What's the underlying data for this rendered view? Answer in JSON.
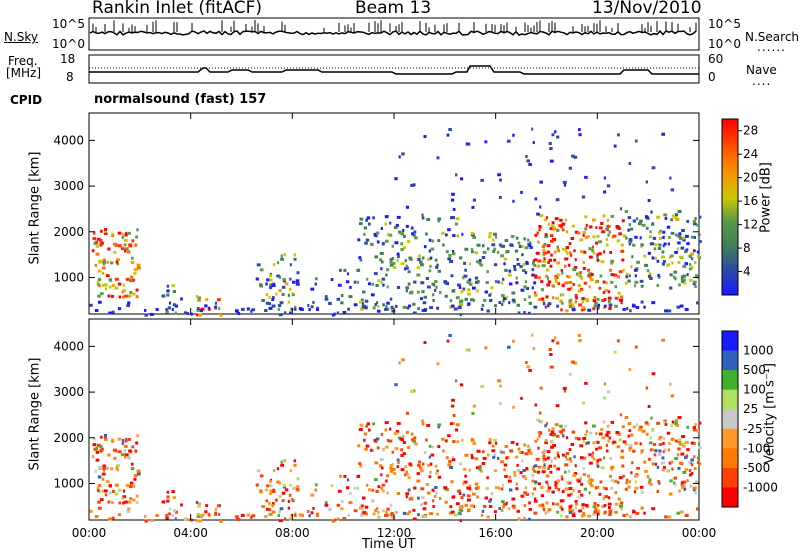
{
  "header": {
    "station": "Rankin Inlet (fitACF)",
    "beam": "Beam 13",
    "date": "13/Nov/2010"
  },
  "strip1": {
    "left_label": "N.Sky",
    "left_ticks": [
      "10^5",
      "10^0"
    ],
    "right_ticks": [
      "10^5",
      "10^0"
    ],
    "right_label": "N.Search",
    "right_legend_line": "......"
  },
  "strip2": {
    "left_label_1": "Freq.",
    "left_label_2": "[MHz]",
    "left_ticks": [
      "18",
      "8"
    ],
    "right_ticks": [
      "60",
      "0"
    ],
    "right_label": "Nave",
    "right_legend_line": "...."
  },
  "cpid": {
    "label": "CPID",
    "text": "normalsound (fast) 157"
  },
  "colors": {
    "power_scale": [
      "#1a1aff",
      "#2e47a8",
      "#3f7f55",
      "#5a9a4a",
      "#c8c800",
      "#f0a000",
      "#ff7000",
      "#ff3000",
      "#ff0000"
    ],
    "velocity_scale": [
      "#ff0000",
      "#ff4000",
      "#ff7a00",
      "#ff9a2a",
      "#c8c8c8",
      "#b0e060",
      "#40b030",
      "#3060c0",
      "#1a1aff"
    ]
  },
  "chart_data": [
    {
      "type": "heatmap",
      "ylabel": "Slant Range [km]",
      "yticks": [
        "4000",
        "3000",
        "2000",
        "1000"
      ],
      "ylim": [
        200,
        4600
      ],
      "xlim": [
        "00:00",
        "24:00"
      ],
      "colorbar": {
        "label": "Power [dB]",
        "ticks": [
          "28",
          "24",
          "20",
          "16",
          "12",
          "8",
          "4"
        ],
        "range": [
          0,
          30
        ]
      }
    },
    {
      "type": "heatmap",
      "ylabel": "Slant Range [km]",
      "yticks": [
        "4000",
        "3000",
        "2000",
        "1000"
      ],
      "ylim": [
        200,
        4600
      ],
      "xlabel": "Time UT",
      "xticks": [
        "00:00",
        "04:00",
        "08:00",
        "12:00",
        "16:00",
        "20:00",
        "00:00"
      ],
      "colorbar": {
        "label": "Velocity [m s⁻¹]",
        "ticks": [
          "1000",
          "500",
          "100",
          "25",
          "-25",
          "-100",
          "-500",
          "-1000"
        ]
      }
    }
  ]
}
